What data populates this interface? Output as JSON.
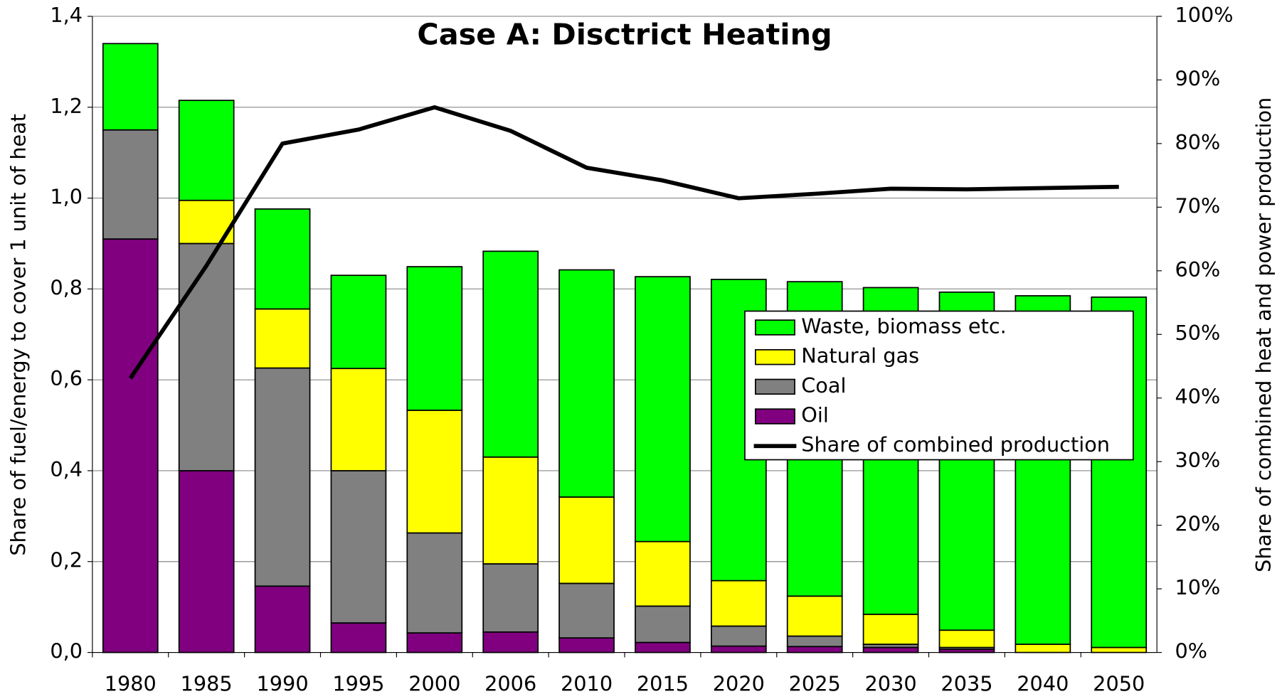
{
  "chart_data": {
    "type": "stacked_bar_line",
    "title": "Case A: Disctrict Heating",
    "y_label": "Share of fuel/energy to cover 1 unit of heat",
    "y2_label": "Share of combined heat and power production",
    "categories": [
      "1980",
      "1985",
      "1990",
      "1995",
      "2000",
      "2006",
      "2010",
      "2015",
      "2020",
      "2025",
      "2030",
      "2035",
      "2040",
      "2050"
    ],
    "series": [
      {
        "name": "Oil",
        "color": "#800080",
        "values": [
          0.91,
          0.4,
          0.146,
          0.065,
          0.043,
          0.045,
          0.032,
          0.022,
          0.014,
          0.013,
          0.011,
          0.007,
          0,
          0
        ]
      },
      {
        "name": "Coal",
        "color": "#808080",
        "values": [
          0.24,
          0.5,
          0.48,
          0.335,
          0.22,
          0.15,
          0.12,
          0.08,
          0.044,
          0.023,
          0.007,
          0.004,
          0,
          0
        ]
      },
      {
        "name": "Natural gas",
        "color": "#ffff00",
        "values": [
          0,
          0.095,
          0.13,
          0.225,
          0.27,
          0.235,
          0.19,
          0.142,
          0.1,
          0.088,
          0.066,
          0.038,
          0.018,
          0.011
        ]
      },
      {
        "name": "Waste, biomass etc.",
        "color": "#00ff00",
        "values": [
          0.19,
          0.22,
          0.22,
          0.205,
          0.316,
          0.453,
          0.5,
          0.583,
          0.663,
          0.692,
          0.719,
          0.744,
          0.767,
          0.771
        ]
      },
      {
        "name": "Share of combined production",
        "color": "#000000",
        "type": "line",
        "axis": "y2",
        "values": [
          43.1,
          60.8,
          80.0,
          82.2,
          85.7,
          82.0,
          76.2,
          74.2,
          71.4,
          72.1,
          72.9,
          72.8,
          73.0,
          73.2
        ]
      }
    ],
    "ylim": [
      0,
      1.4
    ],
    "yticks": [
      {
        "value": 0,
        "label": "0,0"
      },
      {
        "value": 0.2,
        "label": "0,2"
      },
      {
        "value": 0.4,
        "label": "0,4"
      },
      {
        "value": 0.6,
        "label": "0,6"
      },
      {
        "value": 0.8,
        "label": "0,8"
      },
      {
        "value": 1.0,
        "label": "1,0"
      },
      {
        "value": 1.2,
        "label": "1,2"
      },
      {
        "value": 1.4,
        "label": "1,4"
      }
    ],
    "y2lim": [
      0,
      100
    ],
    "y2ticks": [
      {
        "value": 0,
        "label": "0%"
      },
      {
        "value": 10,
        "label": "10%"
      },
      {
        "value": 20,
        "label": "20%"
      },
      {
        "value": 30,
        "label": "30%"
      },
      {
        "value": 40,
        "label": "40%"
      },
      {
        "value": 50,
        "label": "50%"
      },
      {
        "value": 60,
        "label": "60%"
      },
      {
        "value": 70,
        "label": "70%"
      },
      {
        "value": 80,
        "label": "80%"
      },
      {
        "value": 90,
        "label": "90%"
      },
      {
        "value": 100,
        "label": "100%"
      }
    ],
    "grid": true,
    "legend": "right"
  }
}
